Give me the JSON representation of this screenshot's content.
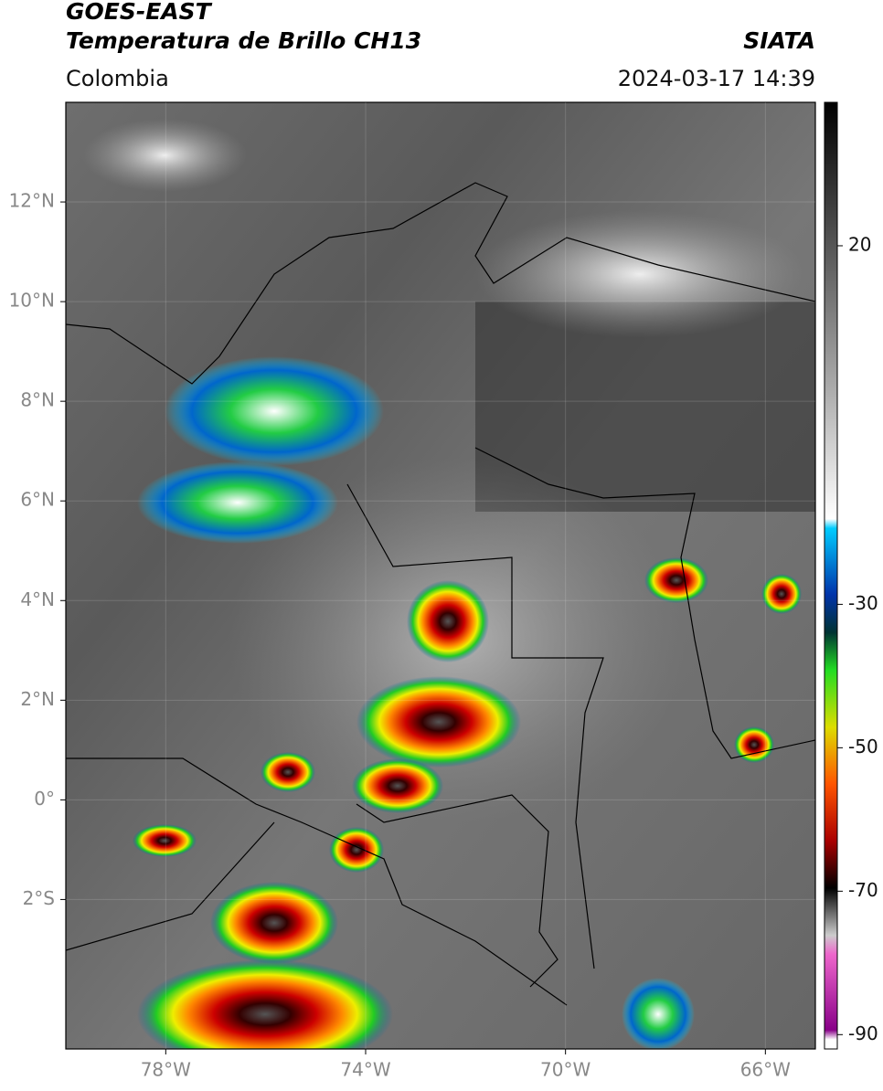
{
  "header": {
    "title": "GOES-EAST",
    "subtitle": "Temperatura de Brillo CH13",
    "region": "Colombia",
    "source": "SIATA",
    "datetime": "2024-03-17 14:39"
  },
  "map": {
    "xlim": [
      -80,
      -65
    ],
    "ylim": [
      -5,
      14
    ],
    "xticks": [
      {
        "value": -78,
        "label": "78°W"
      },
      {
        "value": -74,
        "label": "74°W"
      },
      {
        "value": -70,
        "label": "70°W"
      },
      {
        "value": -66,
        "label": "66°W"
      }
    ],
    "yticks": [
      {
        "value": 12,
        "label": "12°N"
      },
      {
        "value": 10,
        "label": "10°N"
      },
      {
        "value": 8,
        "label": "8°N"
      },
      {
        "value": 6,
        "label": "6°N"
      },
      {
        "value": 4,
        "label": "4°N"
      },
      {
        "value": 2,
        "label": "2°N"
      },
      {
        "value": 0,
        "label": "0°"
      },
      {
        "value": -2,
        "label": "2°S"
      }
    ]
  },
  "colorbar": {
    "lim": [
      -92,
      40
    ],
    "ticks": [
      20,
      -30,
      -50,
      -70,
      -90
    ]
  }
}
